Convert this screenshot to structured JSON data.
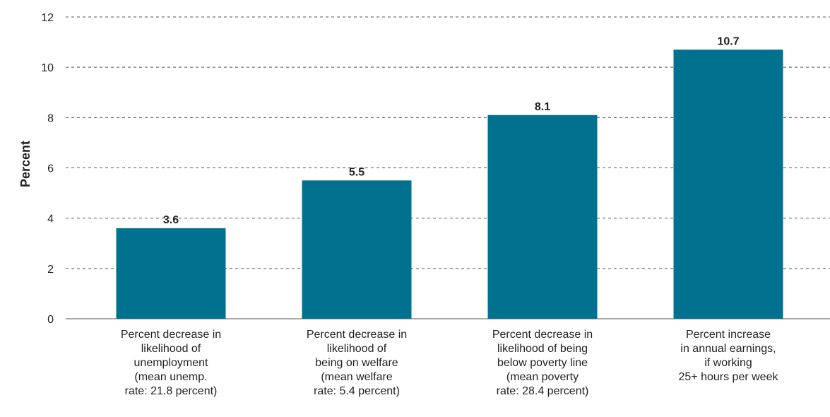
{
  "chart_data": {
    "type": "bar",
    "title": "",
    "xlabel": "",
    "ylabel": "Percent",
    "ylim": [
      0,
      12
    ],
    "yticks": [
      "0",
      "2",
      "4",
      "6",
      "8",
      "10",
      "12"
    ],
    "grid": true,
    "categories": [
      [
        "Percent decrease in",
        "likelihood of",
        "unemployment",
        "(mean unemp.",
        "rate: 21.8 percent)"
      ],
      [
        "Percent decrease in",
        "likelihood of",
        "being on welfare",
        "(mean welfare",
        "rate: 5.4 percent)"
      ],
      [
        "Percent decrease in",
        "likelihood of being",
        "below poverty line",
        "(mean poverty",
        "rate: 28.4 percent)"
      ],
      [
        "Percent increase",
        "in annual earnings,",
        "if working",
        "25+ hours per week"
      ]
    ],
    "values": [
      3.6,
      5.5,
      8.1,
      10.7
    ],
    "data_labels": [
      "3.6",
      "5.5",
      "8.1",
      "10.7"
    ],
    "bar_color": "#00718f"
  }
}
